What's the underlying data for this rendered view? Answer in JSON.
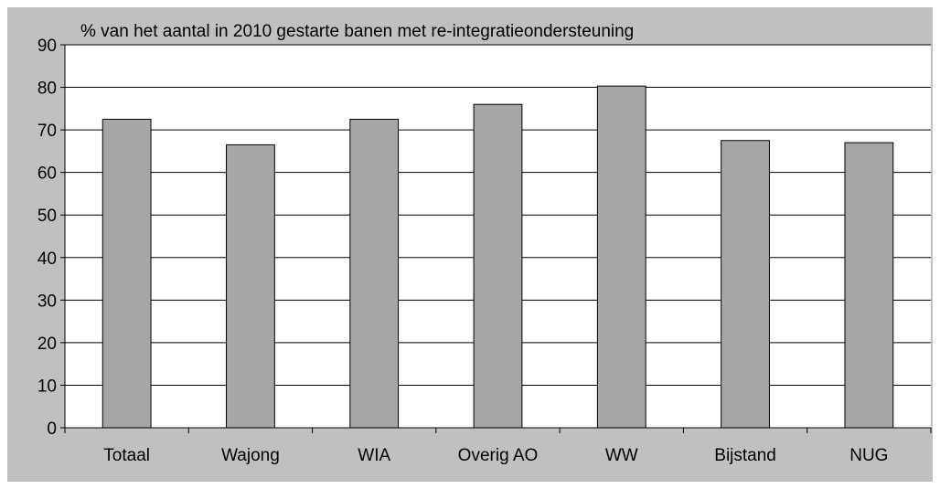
{
  "colors": {
    "background": "#c0c0c0",
    "plot_area": "#ffffff",
    "bar_fill": "#a6a6a6",
    "bar_stroke": "#000000",
    "gridline": "#000000",
    "axis": "#000000",
    "text": "#000000"
  },
  "chart_data": {
    "type": "bar",
    "title": "% van het aantal in 2010 gestarte banen met re-integratieondersteuning",
    "xlabel": "",
    "ylabel": "",
    "categories": [
      "Totaal",
      "Wajong",
      "WIA",
      "Overig AO",
      "WW",
      "Bijstand",
      "NUG"
    ],
    "values": [
      72.5,
      66.5,
      72.5,
      76,
      80.3,
      67.5,
      67
    ],
    "ylim": [
      0,
      90
    ],
    "yticks": [
      0,
      10,
      20,
      30,
      40,
      50,
      60,
      70,
      80,
      90
    ],
    "grid": true,
    "legend": "none"
  }
}
